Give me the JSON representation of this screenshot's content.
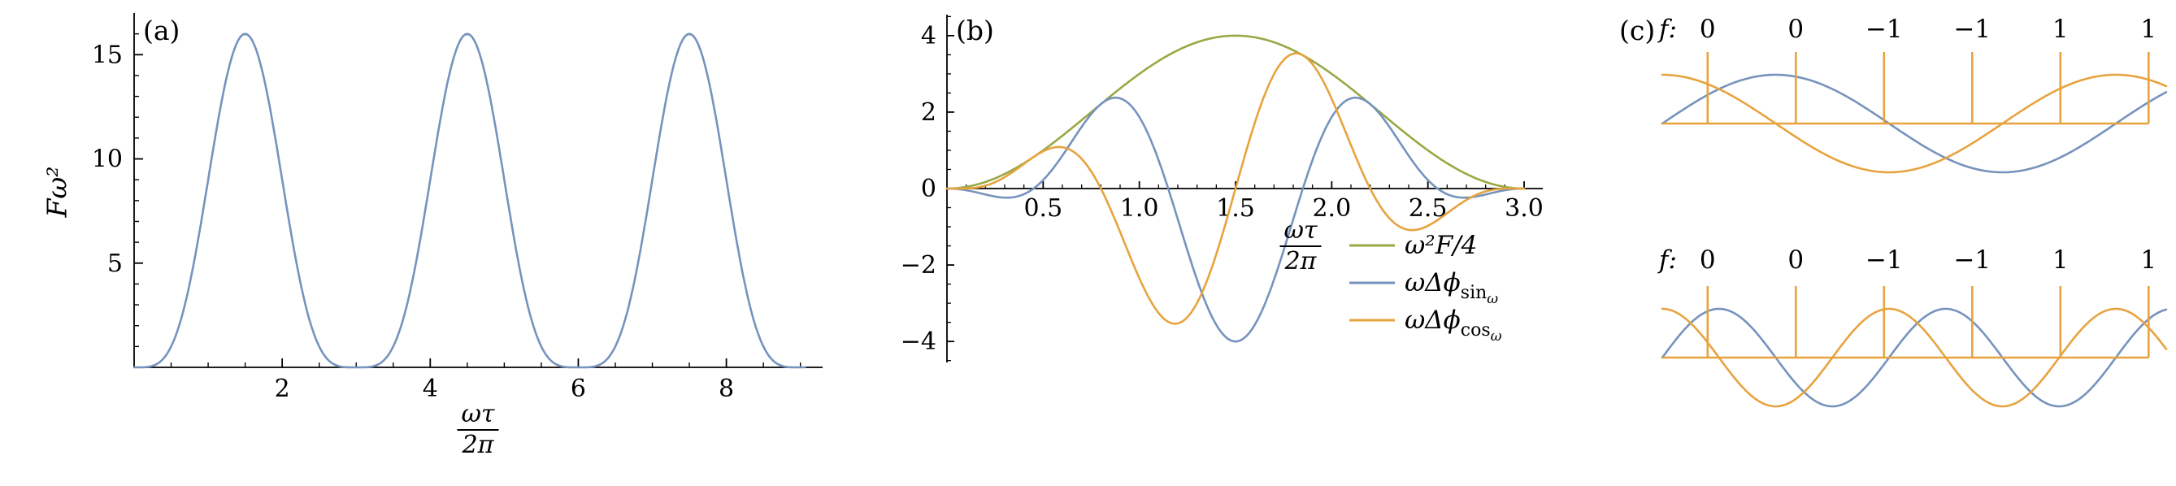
{
  "figure": {
    "panel_a_label": "(a)",
    "panel_b_label": "(b)",
    "panel_c_label": "(c)"
  },
  "colors": {
    "blue": "#7693bd",
    "green": "#97a944",
    "orange": "#e7a33e",
    "axis": "#000000"
  },
  "chart_data": [
    {
      "type": "line",
      "panel": "(a)",
      "ylabel": "Fω²",
      "xlabel_numerator": "ωτ",
      "xlabel_denominator": "2π",
      "xlim": [
        0,
        9.3
      ],
      "ylim": [
        0,
        17
      ],
      "xticks": [
        2,
        4,
        6,
        8
      ],
      "xtick_labels": [
        "2",
        "4",
        "6",
        "8"
      ],
      "yticks": [
        5,
        10,
        15
      ],
      "ytick_labels": [
        "5",
        "10",
        "15"
      ],
      "grid": false,
      "series": [
        {
          "name": "Fω²",
          "color_key": "blue",
          "expr": "16*pow(sin(PI*x/3),4)",
          "x_start": 0,
          "x_step": 0.25,
          "values": [
            0,
            0.07,
            1,
            4,
            9,
            13.93,
            16,
            13.93,
            9,
            4,
            1,
            0.07,
            0,
            0.07,
            1,
            4,
            9,
            13.93,
            16,
            13.93,
            9,
            4,
            1,
            0.07,
            0,
            0.07,
            1,
            4,
            9,
            13.93,
            16,
            13.93,
            9,
            4,
            1,
            0.07,
            0
          ],
          "peaks_x": [
            1.5,
            4.5,
            7.5
          ],
          "peak_value": 16,
          "zeros_x": [
            0,
            3,
            6,
            9
          ]
        }
      ]
    },
    {
      "type": "line",
      "panel": "(b)",
      "xlabel_numerator": "ωτ",
      "xlabel_denominator": "2π",
      "xlim": [
        0,
        3.1
      ],
      "ylim": [
        -4.55,
        4.55
      ],
      "xticks": [
        0.5,
        1.0,
        1.5,
        2.0,
        2.5,
        3.0
      ],
      "xtick_labels": [
        "0.5",
        "1.0",
        "1.5",
        "2.0",
        "2.5",
        "3.0"
      ],
      "yticks": [
        -4,
        -2,
        0,
        2,
        4
      ],
      "ytick_labels": [
        "−4",
        "−2",
        "0",
        "2",
        "4"
      ],
      "grid": false,
      "legend_position": "bottom-right",
      "legend": [
        {
          "main": "ω²F/4",
          "sub": "",
          "subsub": "",
          "color_key": "green"
        },
        {
          "main": "ωΔϕ",
          "sub": "sin",
          "subsub": "ω",
          "color_key": "blue"
        },
        {
          "main": "ωΔϕ",
          "sub": "cos",
          "subsub": "ω",
          "color_key": "orange"
        }
      ],
      "series": [
        {
          "name": "ω²F/4",
          "color_key": "green",
          "expr": "4*pow(sin(PI*x/3),2)",
          "x_start": 0,
          "x_step": 0.25,
          "values": [
            0,
            0.27,
            1,
            2,
            3,
            3.73,
            4,
            3.73,
            3,
            2,
            1,
            0.27,
            0
          ],
          "peaks_x": [
            1.5
          ],
          "peak_value": 4
        },
        {
          "name": "ωΔϕ_sinω",
          "color_key": "blue",
          "expr": "-4*pow(sin(PI*x/3),2)*cos(2*PI*(x-1.5)/1.4)",
          "x_start": 0,
          "x_step": 0.25,
          "values": [
            0,
            -0.21,
            0.22,
            1.95,
            1.87,
            -1.62,
            -4,
            -1.62,
            1.87,
            1.95,
            0.22,
            -0.21,
            0
          ],
          "min_x": 1.5,
          "min_value": -4
        },
        {
          "name": "ωΔϕ_cosω",
          "color_key": "orange",
          "expr": "4*pow(sin(PI*x/3),2)*sin(2*PI*(x-1.5)/1.4)",
          "x_start": 0,
          "x_step": 0.25,
          "values": [
            0,
            0.17,
            0.98,
            0.45,
            -2.34,
            -3.36,
            0,
            3.36,
            2.34,
            -0.45,
            -0.98,
            -0.17,
            0
          ],
          "max_x": 1.85,
          "max_value": 3.5
        }
      ]
    },
    {
      "type": "line",
      "panel": "(c)",
      "subpanels": [
        {
          "f_label": "f:",
          "f_values": [
            "0",
            "0",
            "−1",
            "−1",
            "1",
            "1"
          ],
          "stem_fractions": [
            0.09,
            0.265,
            0.44,
            0.615,
            0.79,
            0.965
          ],
          "series": [
            {
              "name": "sin_ω",
              "color_key": "blue",
              "expr": "sin(2*PI*x/0.9)"
            },
            {
              "name": "cos_ω",
              "color_key": "orange",
              "expr": "cos(2*PI*x/0.9)"
            }
          ]
        },
        {
          "f_label": "f:",
          "f_values": [
            "0",
            "0",
            "−1",
            "−1",
            "1",
            "1"
          ],
          "stem_fractions": [
            0.09,
            0.265,
            0.44,
            0.615,
            0.79,
            0.965
          ],
          "series": [
            {
              "name": "sin_2ω",
              "color_key": "blue",
              "expr": "sin(2*PI*x/0.45)"
            },
            {
              "name": "cos_2ω",
              "color_key": "orange",
              "expr": "cos(2*PI*x/0.45)"
            }
          ]
        }
      ]
    }
  ]
}
